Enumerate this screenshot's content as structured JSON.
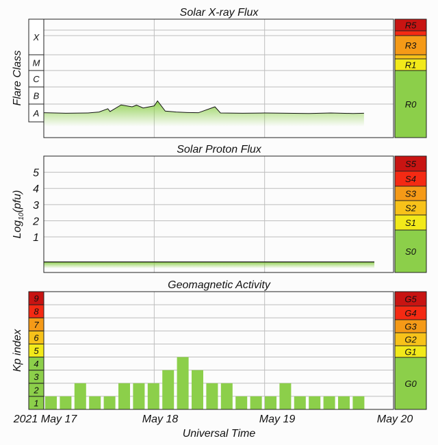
{
  "colors": {
    "green": "#8ccf4a",
    "yellow": "#f2e91a",
    "orange1": "#f7c21a",
    "orange2": "#f59a17",
    "red1": "#f42a13",
    "red2": "#c81412",
    "grid": "#bdbdbd",
    "frame": "#222222"
  },
  "xaxis": {
    "ticks": [
      "2021 May 17",
      "May 18",
      "May 19",
      "May 20"
    ],
    "label": "Universal Time"
  },
  "chart_data": [
    {
      "type": "line",
      "title": "Solar X-ray Flux",
      "ylabel": "Flare Class",
      "y_class_labels": [
        "X",
        "M",
        "C",
        "B",
        "A"
      ],
      "scale_labels": [
        "R5",
        "R3",
        "R1",
        "R0"
      ],
      "x_range_days": [
        0,
        3
      ],
      "baseline_class": "B",
      "series": [
        {
          "x": [
            0,
            0.2,
            0.4,
            0.5,
            0.58,
            0.6,
            0.7,
            0.8,
            0.84,
            0.9,
            1.0,
            1.03,
            1.1,
            1.2,
            1.3,
            1.4,
            1.55,
            1.6,
            1.8,
            2.0,
            2.2,
            2.4,
            2.6,
            2.8,
            2.9
          ],
          "y_log_flux": [
            -6.95,
            -6.97,
            -6.96,
            -6.92,
            -6.78,
            -6.9,
            -6.62,
            -6.7,
            -6.63,
            -6.75,
            -6.66,
            -6.45,
            -6.88,
            -6.92,
            -6.94,
            -6.95,
            -6.7,
            -6.96,
            -6.97,
            -6.96,
            -6.97,
            -6.98,
            -6.96,
            -6.98,
            -6.97
          ]
        }
      ]
    },
    {
      "type": "line",
      "title": "Solar Proton Flux",
      "ylabel": "Log10(pfu)",
      "ylabel_main": "Log",
      "ylabel_sub": "10",
      "ylabel_tail": "(pfu)",
      "yticks": [
        "1",
        "2",
        "3",
        "4",
        "5"
      ],
      "scale_labels": [
        "S5",
        "S4",
        "S3",
        "S2",
        "S1",
        "S0"
      ],
      "ylim": [
        -1.2,
        6
      ],
      "series": [
        {
          "name": "",
          "constant_log_pfu": -0.55
        }
      ]
    },
    {
      "type": "bar",
      "title": "Geomagnetic Activity",
      "ylabel": "Kp index",
      "ylim": [
        0,
        9
      ],
      "kp_tick_labels": [
        "1",
        "2",
        "3",
        "4",
        "5",
        "6",
        "7",
        "8",
        "9"
      ],
      "scale_labels": [
        "G5",
        "G4",
        "G3",
        "G2",
        "G1",
        "G0"
      ],
      "bar_interval_hours": 3,
      "values": [
        1,
        1,
        2,
        1,
        1,
        2,
        2,
        2,
        3,
        4,
        3,
        2,
        2,
        1,
        1,
        1,
        2,
        1,
        1,
        1,
        1,
        1
      ]
    }
  ]
}
